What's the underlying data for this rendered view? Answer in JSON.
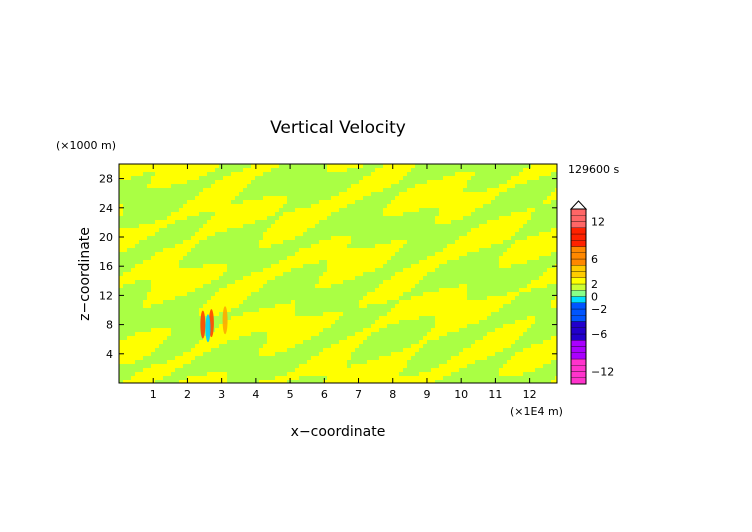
{
  "chart_data": {
    "type": "heatmap",
    "title": "Vertical Velocity",
    "xlabel": "x−coordinate",
    "ylabel": "z−coordinate",
    "x_unit_label": "(×1E4 m)",
    "y_unit_label": "(×1000 m)",
    "time_label": "129600 s",
    "xlim": [
      0,
      12.8
    ],
    "ylim": [
      0,
      30
    ],
    "x_ticks": [
      1,
      2,
      3,
      4,
      5,
      6,
      7,
      8,
      9,
      10,
      11,
      12
    ],
    "y_ticks": [
      4,
      8,
      12,
      16,
      20,
      24,
      28
    ],
    "colorbar": {
      "min": -14,
      "max": 14,
      "step": 1,
      "tick_labels": [
        {
          "value": 12,
          "label": "12"
        },
        {
          "value": 6,
          "label": "6"
        },
        {
          "value": 2,
          "label": "2"
        },
        {
          "value": 0,
          "label": "0"
        },
        {
          "value": -2,
          "label": "−2"
        },
        {
          "value": -6,
          "label": "−6"
        },
        {
          "value": -12,
          "label": "−12"
        }
      ],
      "extend": "max"
    },
    "field_description_colors": {
      "positive_weak": "#ffff00",
      "negative_weak": "#aaff44",
      "strong_positive": "#ff4400",
      "strong_negative": "#00ccff"
    },
    "hotspots": [
      {
        "x": 2.45,
        "z": 8.0,
        "value": 7
      },
      {
        "x": 2.7,
        "z": 8.2,
        "value": 6
      },
      {
        "x": 2.6,
        "z": 7.5,
        "value": -3
      },
      {
        "x": 3.1,
        "z": 8.6,
        "value": 3
      }
    ]
  }
}
